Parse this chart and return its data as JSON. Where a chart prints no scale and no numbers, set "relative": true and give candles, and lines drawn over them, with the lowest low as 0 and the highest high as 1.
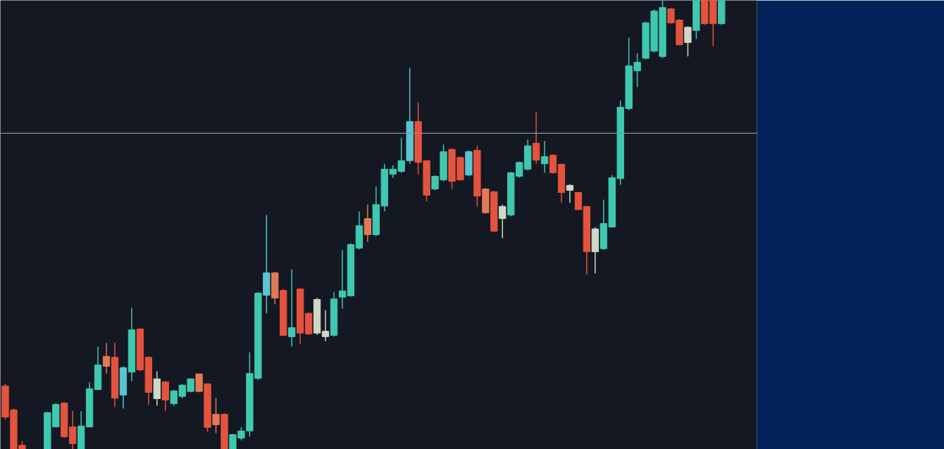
{
  "chart_data": {
    "type": "candlestick",
    "relative": true,
    "tick_labels": false,
    "categories": [
      null,
      null,
      null,
      null,
      null,
      null,
      null,
      null,
      null,
      null,
      null,
      null,
      null,
      null,
      null,
      null,
      null,
      null,
      null,
      null,
      null,
      null,
      null,
      null,
      null,
      null,
      null,
      null,
      null,
      null,
      null,
      null,
      null,
      null,
      null,
      null,
      null,
      null,
      null,
      null,
      null,
      null,
      null,
      null,
      null,
      null,
      null,
      null,
      null,
      null,
      null,
      null,
      null,
      null,
      null,
      null,
      null,
      null,
      null,
      null,
      null,
      null,
      null,
      null,
      null,
      null,
      null,
      null,
      null,
      null,
      null,
      null,
      null,
      null,
      null,
      null,
      null,
      null,
      null,
      null,
      null,
      null,
      null,
      null,
      null,
      null
    ],
    "ohlc": [
      [
        0.141,
        0.146,
        0.067,
        0.072
      ],
      [
        0.088,
        0.091,
        0,
        0
      ],
      [
        0.009,
        0.019,
        0,
        0
      ],
      null,
      null,
      [
        0,
        0.083,
        0,
        0.082
      ],
      [
        0.05,
        0.103,
        0.049,
        0.1
      ],
      [
        0.103,
        0.105,
        0.025,
        0.028
      ],
      [
        0.05,
        0.086,
        0,
        0.013
      ],
      [
        0,
        0.085,
        0,
        0.052
      ],
      [
        0.05,
        0.149,
        0.049,
        0.135
      ],
      [
        0.133,
        0.229,
        0.133,
        0.188
      ],
      [
        0.207,
        0.237,
        0.169,
        0.185
      ],
      [
        0.205,
        0.238,
        0.094,
        0.114
      ],
      [
        0.121,
        0.185,
        0.091,
        0.182
      ],
      [
        0.172,
        0.315,
        0.152,
        0.266
      ],
      [
        0.268,
        0.27,
        0.174,
        0.177
      ],
      [
        0.205,
        0.207,
        0.099,
        0.127
      ],
      [
        0.113,
        0.174,
        0.097,
        0.157
      ],
      [
        0.15,
        0.152,
        0.085,
        0.11
      ],
      [
        0.102,
        0.133,
        0.097,
        0.13
      ],
      [
        0.118,
        0.146,
        0.114,
        0.143
      ],
      [
        0.129,
        0.158,
        0.127,
        0.157
      ],
      [
        0.168,
        0.169,
        0.127,
        0.129
      ],
      [
        0.146,
        0.147,
        0.039,
        0.049
      ],
      [
        0.078,
        0.114,
        0.036,
        0.055
      ],
      [
        0.078,
        0.08,
        0,
        0
      ],
      [
        0,
        0.034,
        0,
        0.033
      ],
      [
        0.025,
        0.049,
        0.02,
        0.041
      ],
      [
        0.041,
        0.216,
        0.028,
        0.169
      ],
      [
        0.158,
        0.35,
        0.154,
        0.348
      ],
      [
        0.343,
        0.522,
        0.303,
        0.393
      ],
      [
        0.393,
        0.395,
        0.323,
        0.337
      ],
      [
        0.354,
        0.357,
        0.252,
        0.254
      ],
      [
        0.251,
        0.401,
        0.229,
        0.271
      ],
      [
        0.357,
        0.359,
        0.235,
        0.259
      ],
      [
        0.303,
        0.304,
        0.255,
        0.257
      ],
      [
        0.259,
        0.337,
        0.255,
        0.334
      ],
      [
        0.251,
        0.31,
        0.241,
        0.263
      ],
      [
        0.254,
        0.35,
        0.251,
        0.335
      ],
      [
        0.339,
        0.444,
        0.313,
        0.353
      ],
      [
        0.342,
        0.459,
        0.34,
        0.456
      ],
      [
        0.448,
        0.53,
        0.445,
        0.498
      ],
      [
        0.514,
        0.545,
        0.462,
        0.478
      ],
      [
        0.478,
        0.585,
        0.475,
        0.545
      ],
      [
        0.542,
        0.636,
        0.53,
        0.624
      ],
      [
        0.613,
        0.633,
        0.605,
        0.624
      ],
      [
        0.619,
        0.694,
        0.616,
        0.643
      ],
      [
        0.643,
        0.85,
        0.636,
        0.73
      ],
      [
        0.73,
        0.773,
        0.613,
        0.639
      ],
      [
        0.643,
        0.644,
        0.552,
        0.566
      ],
      [
        0.58,
        0.61,
        0.577,
        0.608
      ],
      [
        0.6,
        0.679,
        0.597,
        0.663
      ],
      [
        0.668,
        0.671,
        0.58,
        0.597
      ],
      [
        0.65,
        0.652,
        0.599,
        0.6
      ],
      [
        0.611,
        0.666,
        0.608,
        0.663
      ],
      [
        0.666,
        0.676,
        0.541,
        0.564
      ],
      [
        0.58,
        0.582,
        0.525,
        0.527
      ],
      [
        0.574,
        0.575,
        0.483,
        0.486
      ],
      [
        0.514,
        0.545,
        0.47,
        0.541
      ],
      [
        0.522,
        0.618,
        0.519,
        0.616
      ],
      [
        0.608,
        0.641,
        0.605,
        0.639
      ],
      [
        0.624,
        0.69,
        0.621,
        0.676
      ],
      [
        0.682,
        0.752,
        0.636,
        0.644
      ],
      [
        0.636,
        0.687,
        0.616,
        0.652
      ],
      [
        0.655,
        0.657,
        0.614,
        0.616
      ],
      [
        0.635,
        0.636,
        0.549,
        0.572
      ],
      [
        0.577,
        0.591,
        0.549,
        0.588
      ],
      [
        0.572,
        0.574,
        0.533,
        0.534
      ],
      [
        0.541,
        0.542,
        0.389,
        0.44
      ],
      [
        0.44,
        0.495,
        0.392,
        0.491
      ],
      [
        0.447,
        0.556,
        0.444,
        0.503
      ],
      [
        0.495,
        0.611,
        0.494,
        0.605
      ],
      [
        0.603,
        0.777,
        0.589,
        0.762
      ],
      [
        0.759,
        0.917,
        0.755,
        0.854
      ],
      [
        0.843,
        0.882,
        0.807,
        0.862
      ],
      [
        0.871,
        0.953,
        0.868,
        0.95
      ],
      [
        0.887,
        0.98,
        0.884,
        0.976
      ],
      [
        0.875,
        1,
        0.871,
        0.984
      ],
      [
        0.981,
        0.983,
        0.948,
        0.95
      ],
      [
        0.956,
        0.958,
        0.9,
        0.901
      ],
      [
        0.906,
        0.942,
        0.875,
        0.94
      ],
      [
        0.933,
        1,
        0.914,
        1
      ],
      [
        1,
        1,
        0.945,
        0.948
      ],
      [
        1,
        1,
        0.898,
        0.948
      ],
      [
        0.948,
        1,
        0.945,
        1
      ]
    ],
    "colors": [
      "#e4533e",
      "#e4533e",
      "#e4533e",
      null,
      null,
      "#3fc8b0",
      "#3fc8b0",
      "#e4533e",
      "#e4533e",
      "#3fc8b0",
      "#3fc8b0",
      "#3fc8b0",
      "#e27a56",
      "#e4533e",
      "#5cc3d1",
      "#3fc8b0",
      "#e4533e",
      "#e4533e",
      "#cfd7c6",
      "#e4533e",
      "#3fc8b0",
      "#3fc8b0",
      "#3fc8b0",
      "#e27a56",
      "#e4533e",
      "#e27a56",
      "#e4533e",
      "#3fc8b0",
      "#3fc8b0",
      "#3fc8b0",
      "#3fc8b0",
      "#5cc3d1",
      "#e27a56",
      "#e4533e",
      "#3fc8b0",
      "#e4533e",
      "#e4533e",
      "#cfd7c6",
      "#cfd7c6",
      "#3fc8b0",
      "#3fc8b0",
      "#3fc8b0",
      "#3fc8b0",
      "#e27a56",
      "#3fc8b0",
      "#3fc8b0",
      "#3fc8b0",
      "#3fc8b0",
      "#5cc3d1",
      "#e4533e",
      "#e4533e",
      "#3fc8b0",
      "#3fc8b0",
      "#e4533e",
      "#e4533e",
      "#5cc3d1",
      "#e4533e",
      "#e27a56",
      "#e4533e",
      "#cfd7c6",
      "#3fc8b0",
      "#3fc8b0",
      "#3fc8b0",
      "#e4533e",
      "#3fc8b0",
      "#e4533e",
      "#e4533e",
      "#cfd7c6",
      "#e4533e",
      "#e4533e",
      "#cfd7c6",
      "#3fc8b0",
      "#3fc8b0",
      "#3fc8b0",
      "#3fc8b0",
      "#3fc8b0",
      "#3fc8b0",
      "#3fc8b0",
      "#3fc8b0",
      "#e4533e",
      "#e4533e",
      "#cfd7c6",
      "#3fc8b0",
      "#e4533e",
      "#e4533e",
      "#3fc8b0"
    ],
    "ref_lines": [
      {
        "axis": "y",
        "value": 0.704,
        "color": "#8d9099"
      }
    ]
  }
}
